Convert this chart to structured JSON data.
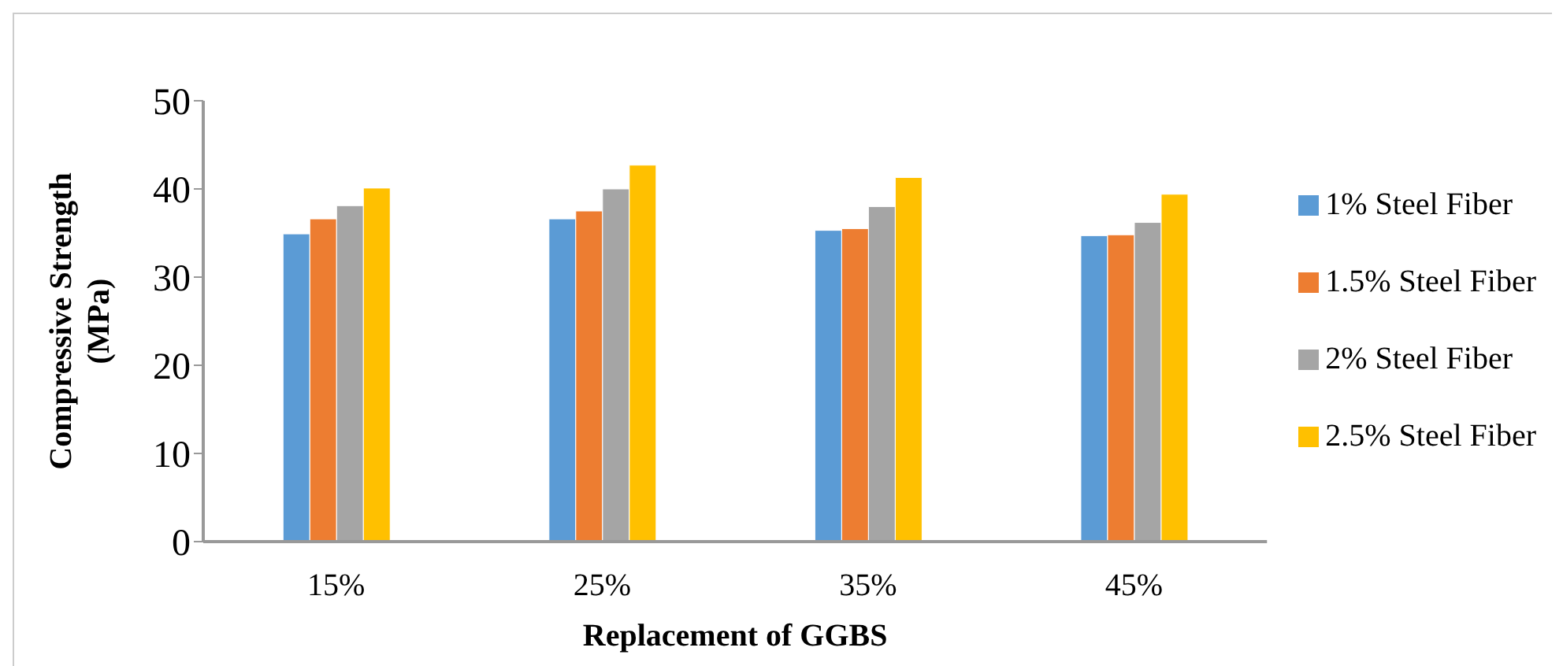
{
  "chart_data": {
    "type": "bar",
    "xlabel": "Replacement of GGBS",
    "ylabel": "Compressive Strength (MPa)",
    "categories": [
      "15%",
      "25%",
      "35%",
      "45%"
    ],
    "series": [
      {
        "name": "1% Steel Fiber",
        "color": "#5b9bd5",
        "values": [
          34.9,
          36.6,
          35.3,
          34.7
        ]
      },
      {
        "name": "1.5% Steel Fiber",
        "color": "#ed7d31",
        "values": [
          36.6,
          37.5,
          35.5,
          34.8
        ]
      },
      {
        "name": "2% Steel Fiber",
        "color": "#a5a5a5",
        "values": [
          38.1,
          40.0,
          38.0,
          36.2
        ]
      },
      {
        "name": "2.5% Steel Fiber",
        "color": "#ffc000",
        "values": [
          40.1,
          42.7,
          41.3,
          39.4
        ]
      }
    ],
    "ylim": [
      0,
      50
    ],
    "yticks": [
      0,
      10,
      20,
      30,
      40,
      50
    ],
    "grid": false,
    "legend": "right"
  }
}
